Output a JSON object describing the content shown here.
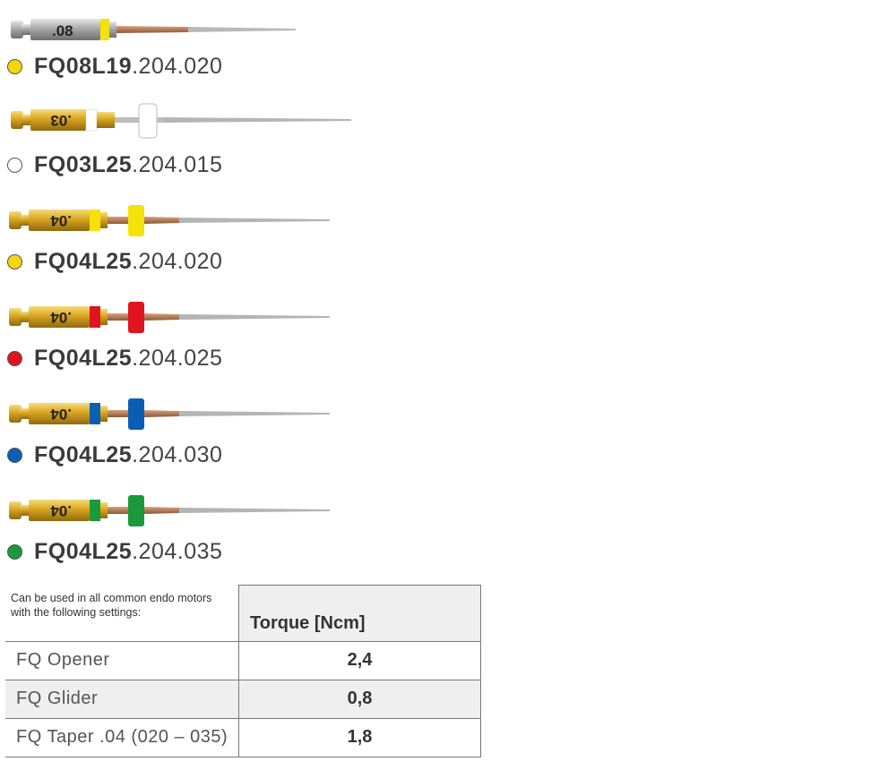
{
  "files": [
    {
      "taper_label": ".08",
      "code_main": "FQ08L19",
      "code_suffix": ".204.020",
      "color": "#f5d60d",
      "handle": "silver"
    },
    {
      "taper_label": ".03",
      "code_main": "FQ03L25",
      "code_suffix": ".204.015",
      "color": "#ffffff",
      "handle": "gold"
    },
    {
      "taper_label": ".04",
      "code_main": "FQ04L25",
      "code_suffix": ".204.020",
      "color": "#f5d60d",
      "handle": "gold"
    },
    {
      "taper_label": ".04",
      "code_main": "FQ04L25",
      "code_suffix": ".204.025",
      "color": "#e0141e",
      "handle": "gold"
    },
    {
      "taper_label": ".04",
      "code_main": "FQ04L25",
      "code_suffix": ".204.030",
      "color": "#0a5fb4",
      "handle": "gold"
    },
    {
      "taper_label": ".04",
      "code_main": "FQ04L25",
      "code_suffix": ".204.035",
      "color": "#1a9a3a",
      "handle": "gold"
    }
  ],
  "table": {
    "description": "Can be used in all common endo motors with the following settings:",
    "column_header": "Torque  [Ncm]",
    "rows": [
      {
        "name": "FQ Opener",
        "torque": "2,4"
      },
      {
        "name": "FQ Glider",
        "torque": "0,8"
      },
      {
        "name": "FQ Taper .04 (020 – 035)",
        "torque": "1,8"
      }
    ]
  }
}
